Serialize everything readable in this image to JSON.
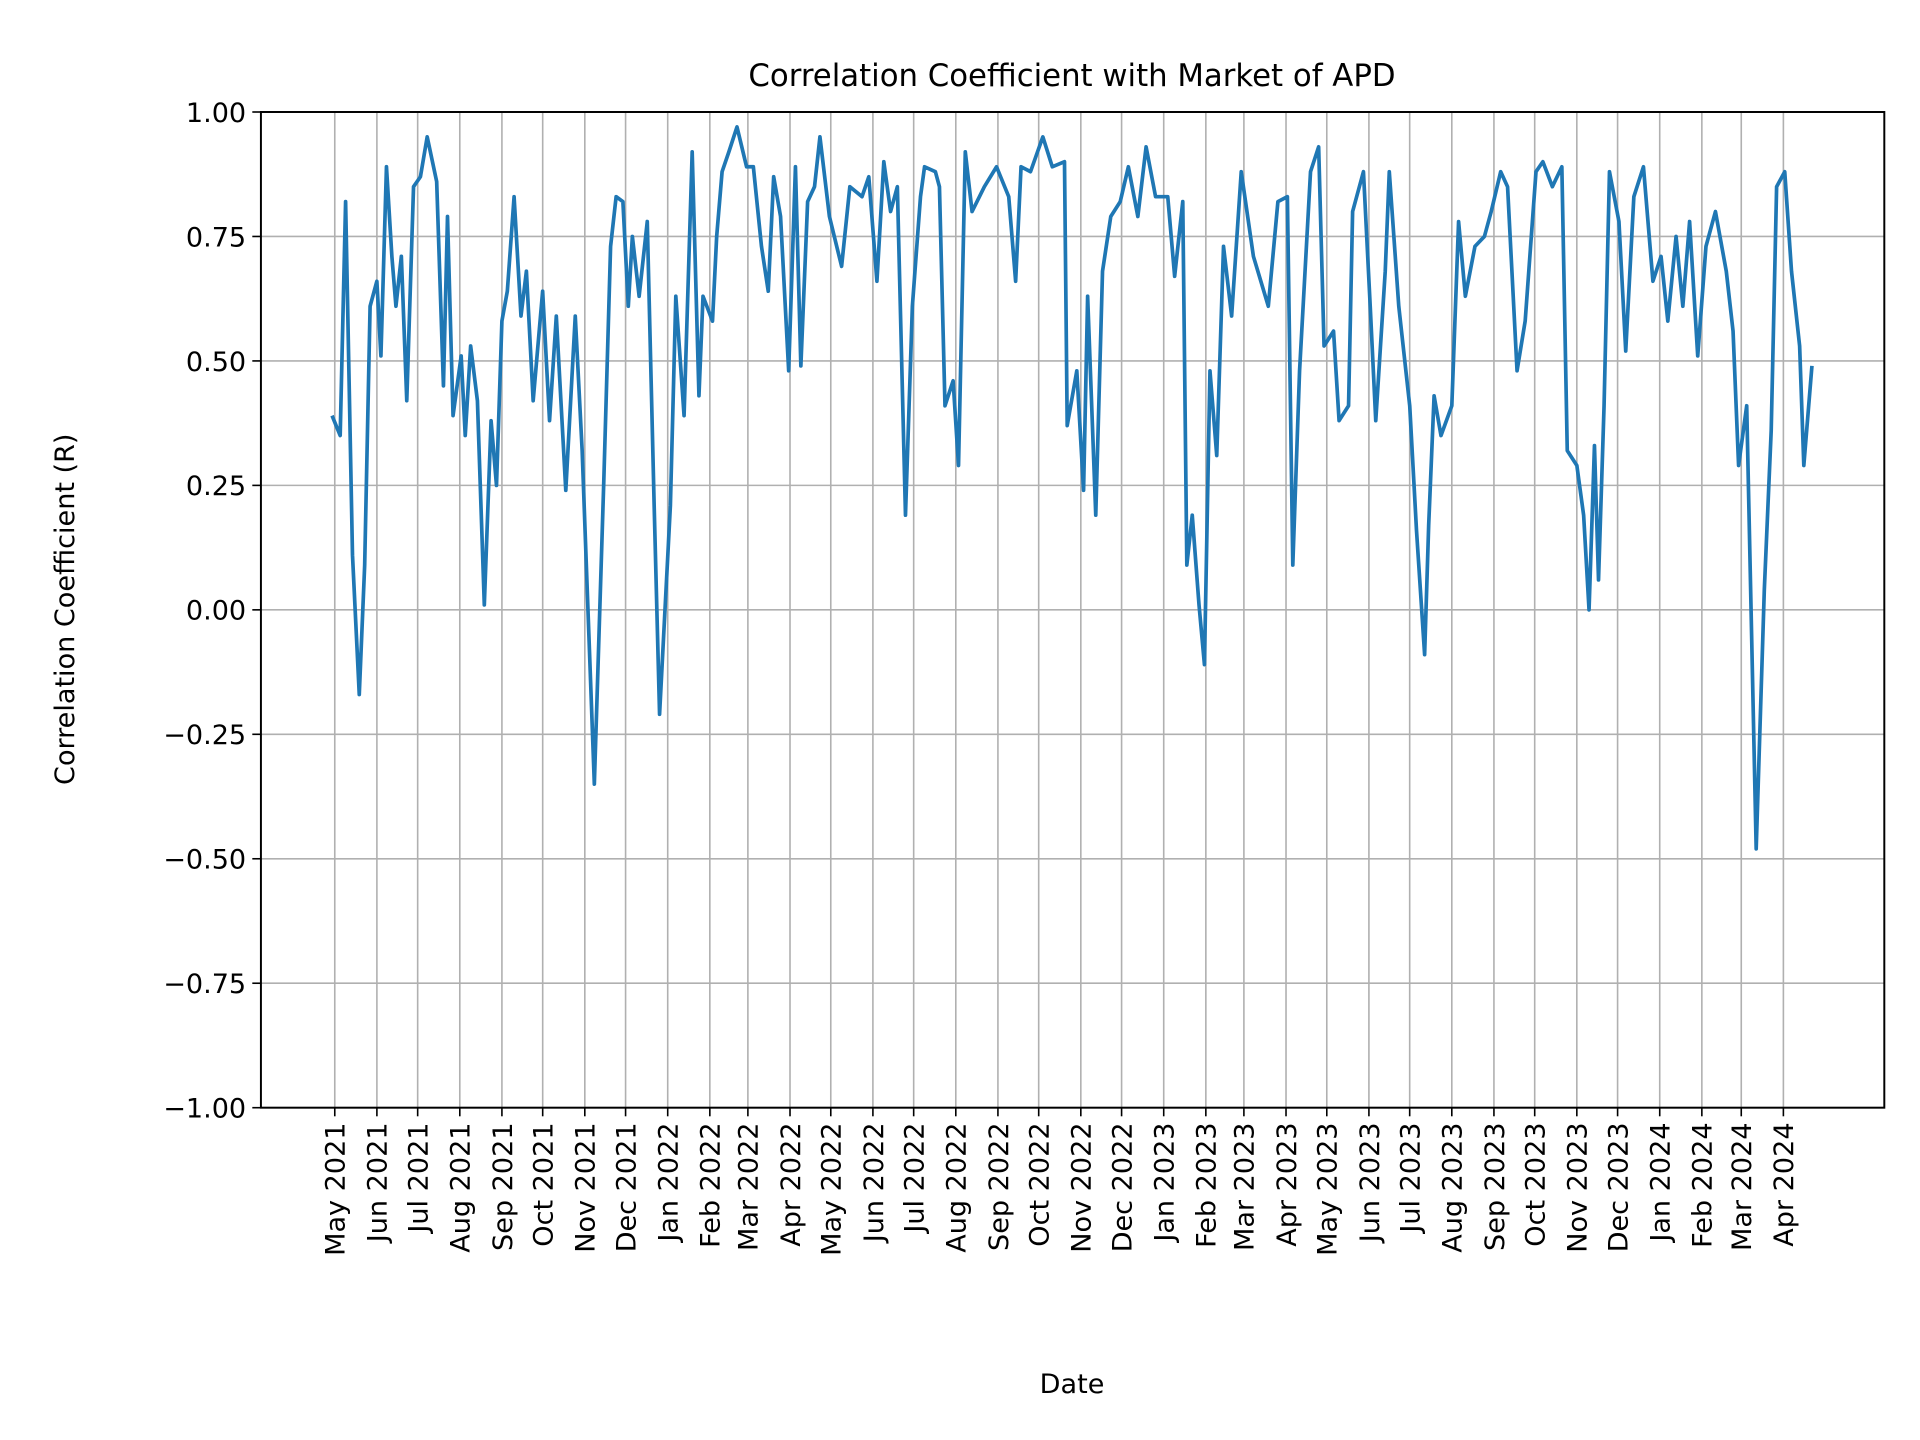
{
  "chart_data": {
    "type": "line",
    "title": "Correlation Coefficient with Market of APD",
    "xlabel": "Date",
    "ylabel": "Correlation Coefficient (R)",
    "ylim": [
      -1.0,
      1.0
    ],
    "yticks": [
      "1.00",
      "0.75",
      "0.50",
      "0.25",
      "0.00",
      "−0.25",
      "−0.50",
      "−0.75",
      "−1.00"
    ],
    "ytick_values": [
      1.0,
      0.75,
      0.5,
      0.25,
      0.0,
      -0.25,
      -0.5,
      -0.75,
      -1.0
    ],
    "xticks": [
      "May 2021",
      "Jun 2021",
      "Jul 2021",
      "Aug 2021",
      "Sep 2021",
      "Oct 2021",
      "Nov 2021",
      "Dec 2021",
      "Jan 2022",
      "Feb 2022",
      "Mar 2022",
      "Apr 2022",
      "May 2022",
      "Jun 2022",
      "Jul 2022",
      "Aug 2022",
      "Sep 2022",
      "Oct 2022",
      "Nov 2022",
      "Dec 2022",
      "Jan 2023",
      "Feb 2023",
      "Mar 2023",
      "Apr 2023",
      "May 2023",
      "Jun 2023",
      "Jul 2023",
      "Aug 2023",
      "Sep 2023",
      "Oct 2023",
      "Nov 2023",
      "Dec 2023",
      "Jan 2024",
      "Feb 2024",
      "Mar 2024",
      "Apr 2024"
    ],
    "xtick_dates": [
      "2021-05-01",
      "2021-06-01",
      "2021-07-01",
      "2021-08-01",
      "2021-09-01",
      "2021-10-01",
      "2021-11-01",
      "2021-12-01",
      "2022-01-01",
      "2022-02-01",
      "2022-03-01",
      "2022-04-01",
      "2022-05-01",
      "2022-06-01",
      "2022-07-01",
      "2022-08-01",
      "2022-09-01",
      "2022-10-01",
      "2022-11-01",
      "2022-12-01",
      "2023-01-01",
      "2023-02-01",
      "2023-03-01",
      "2023-04-01",
      "2023-05-01",
      "2023-06-01",
      "2023-07-01",
      "2023-08-01",
      "2023-09-01",
      "2023-10-01",
      "2023-11-01",
      "2023-12-01",
      "2024-01-01",
      "2024-02-01",
      "2024-03-01",
      "2024-04-01"
    ],
    "grid": true,
    "line_color": "#1f77b4",
    "series": [
      {
        "x": [
          "2021-04-29",
          "2021-05-05",
          "2021-05-09",
          "2021-05-14",
          "2021-05-19",
          "2021-05-23",
          "2021-05-27",
          "2021-06-01",
          "2021-06-04",
          "2021-06-08",
          "2021-06-12",
          "2021-06-15",
          "2021-06-19",
          "2021-06-23",
          "2021-06-28",
          "2021-07-03",
          "2021-07-08",
          "2021-07-15",
          "2021-07-20",
          "2021-07-23",
          "2021-07-27",
          "2021-08-02",
          "2021-08-05",
          "2021-08-09",
          "2021-08-14",
          "2021-08-19",
          "2021-08-24",
          "2021-08-28",
          "2021-09-01",
          "2021-09-05",
          "2021-09-10",
          "2021-09-15",
          "2021-09-19",
          "2021-09-24",
          "2021-10-01",
          "2021-10-06",
          "2021-10-11",
          "2021-10-18",
          "2021-10-25",
          "2021-10-30",
          "2021-11-08",
          "2021-11-15",
          "2021-11-20",
          "2021-11-24",
          "2021-11-29",
          "2021-12-03",
          "2021-12-06",
          "2021-12-11",
          "2021-12-17",
          "2021-12-22",
          "2021-12-26",
          "2022-01-03",
          "2022-01-07",
          "2022-01-13",
          "2022-01-19",
          "2022-01-24",
          "2022-01-27",
          "2022-02-03",
          "2022-02-06",
          "2022-02-10",
          "2022-02-15",
          "2022-02-21",
          "2022-02-28",
          "2022-03-05",
          "2022-03-11",
          "2022-03-16",
          "2022-03-20",
          "2022-03-25",
          "2022-03-31",
          "2022-04-05",
          "2022-04-09",
          "2022-04-14",
          "2022-04-19",
          "2022-04-23",
          "2022-04-30",
          "2022-05-09",
          "2022-05-15",
          "2022-05-24",
          "2022-05-29",
          "2022-06-04",
          "2022-06-09",
          "2022-06-14",
          "2022-06-19",
          "2022-06-25",
          "2022-06-30",
          "2022-07-06",
          "2022-07-09",
          "2022-07-17",
          "2022-07-20",
          "2022-07-24",
          "2022-07-30",
          "2022-08-03",
          "2022-08-08",
          "2022-08-13",
          "2022-08-22",
          "2022-08-31",
          "2022-09-09",
          "2022-09-14",
          "2022-09-18",
          "2022-09-25",
          "2022-10-04",
          "2022-10-11",
          "2022-10-20",
          "2022-10-22",
          "2022-10-29",
          "2022-11-03",
          "2022-11-06",
          "2022-11-12",
          "2022-11-17",
          "2022-11-23",
          "2022-11-30",
          "2022-12-06",
          "2022-12-13",
          "2022-12-19",
          "2022-12-26",
          "2023-01-04",
          "2023-01-09",
          "2023-01-15",
          "2023-01-18",
          "2023-01-22",
          "2023-01-27",
          "2023-01-31",
          "2023-02-04",
          "2023-02-09",
          "2023-02-14",
          "2023-02-20",
          "2023-02-27",
          "2023-03-08",
          "2023-03-19",
          "2023-03-26",
          "2023-04-02",
          "2023-04-06",
          "2023-04-11",
          "2023-04-19",
          "2023-04-25",
          "2023-04-29",
          "2023-05-06",
          "2023-05-10",
          "2023-05-17",
          "2023-05-20",
          "2023-05-28",
          "2023-06-02",
          "2023-06-06",
          "2023-06-13",
          "2023-06-16",
          "2023-06-23",
          "2023-07-01",
          "2023-07-06",
          "2023-07-12",
          "2023-07-15",
          "2023-07-19",
          "2023-07-24",
          "2023-08-01",
          "2023-08-06",
          "2023-08-11",
          "2023-08-18",
          "2023-08-25",
          "2023-08-30",
          "2023-09-06",
          "2023-09-11",
          "2023-09-18",
          "2023-09-24",
          "2023-10-02",
          "2023-10-07",
          "2023-10-14",
          "2023-10-21",
          "2023-10-25",
          "2023-11-01",
          "2023-11-06",
          "2023-11-10",
          "2023-11-14",
          "2023-11-17",
          "2023-11-21",
          "2023-11-25",
          "2023-12-02",
          "2023-12-07",
          "2023-12-13",
          "2023-12-20",
          "2023-12-27",
          "2024-01-02",
          "2024-01-07",
          "2024-01-13",
          "2024-01-18",
          "2024-01-23",
          "2024-01-29",
          "2024-02-04",
          "2024-02-11",
          "2024-02-19",
          "2024-02-24",
          "2024-02-28",
          "2024-03-05",
          "2024-03-12",
          "2024-03-18",
          "2024-03-23",
          "2024-03-27",
          "2024-04-02",
          "2024-04-07",
          "2024-04-13",
          "2024-04-16",
          "2024-04-22"
        ],
        "y": [
          0.39,
          0.35,
          0.82,
          0.11,
          -0.17,
          0.09,
          0.61,
          0.66,
          0.51,
          0.89,
          0.71,
          0.61,
          0.71,
          0.42,
          0.85,
          0.87,
          0.95,
          0.86,
          0.45,
          0.79,
          0.39,
          0.51,
          0.35,
          0.53,
          0.42,
          0.01,
          0.38,
          0.25,
          0.58,
          0.64,
          0.83,
          0.59,
          0.68,
          0.42,
          0.64,
          0.38,
          0.59,
          0.24,
          0.59,
          0.32,
          -0.35,
          0.26,
          0.73,
          0.83,
          0.82,
          0.61,
          0.75,
          0.63,
          0.78,
          0.21,
          -0.21,
          0.21,
          0.63,
          0.39,
          0.92,
          0.43,
          0.63,
          0.58,
          0.75,
          0.88,
          0.92,
          0.97,
          0.89,
          0.89,
          0.73,
          0.64,
          0.87,
          0.79,
          0.48,
          0.89,
          0.49,
          0.82,
          0.85,
          0.95,
          0.79,
          0.69,
          0.85,
          0.83,
          0.87,
          0.66,
          0.9,
          0.8,
          0.85,
          0.19,
          0.61,
          0.83,
          0.89,
          0.88,
          0.85,
          0.41,
          0.46,
          0.29,
          0.92,
          0.8,
          0.85,
          0.89,
          0.83,
          0.66,
          0.89,
          0.88,
          0.95,
          0.89,
          0.9,
          0.37,
          0.48,
          0.24,
          0.63,
          0.19,
          0.68,
          0.79,
          0.82,
          0.89,
          0.79,
          0.93,
          0.83,
          0.83,
          0.67,
          0.82,
          0.09,
          0.19,
          0.01,
          -0.11,
          0.48,
          0.31,
          0.73,
          0.59,
          0.88,
          0.71,
          0.61,
          0.82,
          0.83,
          0.09,
          0.48,
          0.88,
          0.93,
          0.53,
          0.56,
          0.38,
          0.41,
          0.8,
          0.88,
          0.61,
          0.38,
          0.68,
          0.88,
          0.61,
          0.41,
          0.16,
          -0.09,
          0.17,
          0.43,
          0.35,
          0.41,
          0.78,
          0.63,
          0.73,
          0.75,
          0.8,
          0.88,
          0.85,
          0.48,
          0.58,
          0.88,
          0.9,
          0.85,
          0.89,
          0.32,
          0.29,
          0.19,
          0.0,
          0.33,
          0.06,
          0.41,
          0.88,
          0.78,
          0.52,
          0.83,
          0.89,
          0.66,
          0.71,
          0.58,
          0.75,
          0.61,
          0.78,
          0.51,
          0.73,
          0.8,
          0.68,
          0.56,
          0.29,
          0.41,
          -0.48,
          0.04,
          0.36,
          0.85,
          0.88,
          0.68,
          0.53,
          0.29,
          0.49
        ]
      }
    ]
  }
}
